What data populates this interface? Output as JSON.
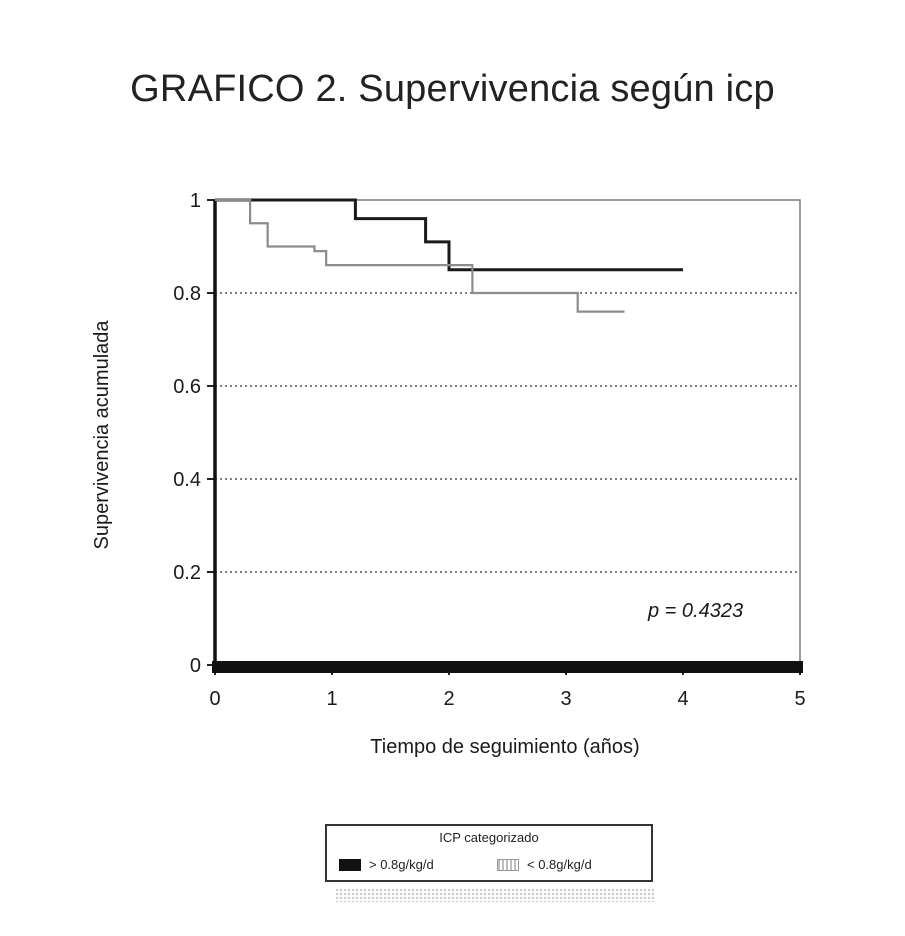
{
  "chart_data": {
    "type": "line",
    "title": "GRAFICO 2. Supervivencia según icp",
    "xlabel": "Tiempo de seguimiento (años)",
    "ylabel": "Supervivencia acumulada",
    "xlim": [
      0,
      5
    ],
    "ylim": [
      0,
      1
    ],
    "x_ticks": [
      "0",
      "1",
      "2",
      "3",
      "4",
      "5"
    ],
    "y_ticks": [
      "0",
      "0.2",
      "0.4",
      "0.6",
      "0.8",
      "1"
    ],
    "grid": "horizontal dotted",
    "annotation": "p = 0.4323",
    "legend": {
      "title": "ICP categorizado",
      "placement": "bottom"
    },
    "series": [
      {
        "name": "> 0.8g/kg/d",
        "color": "#1a1a1a",
        "step": true,
        "x": [
          0,
          1.2,
          1.2,
          1.8,
          1.8,
          2.0,
          2.0,
          4.0
        ],
        "y": [
          1.0,
          1.0,
          0.96,
          0.96,
          0.91,
          0.91,
          0.85,
          0.85
        ]
      },
      {
        "name": "< 0.8g/kg/d",
        "color": "#8c8c8c",
        "step": true,
        "x": [
          0,
          0.3,
          0.3,
          0.45,
          0.45,
          0.85,
          0.85,
          0.95,
          0.95,
          2.2,
          2.2,
          3.1,
          3.1,
          3.5
        ],
        "y": [
          1.0,
          0.95,
          0.95,
          0.9,
          0.9,
          0.89,
          0.89,
          0.86,
          0.86,
          0.8,
          0.8,
          0.76,
          0.76,
          0.76
        ]
      }
    ]
  }
}
